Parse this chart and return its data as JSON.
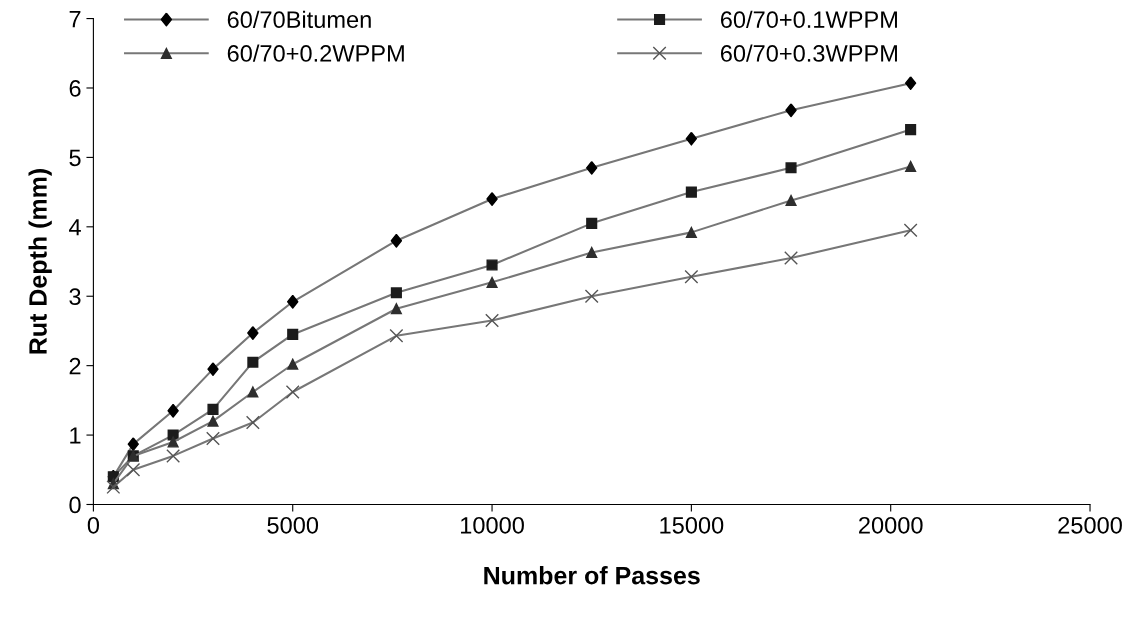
{
  "chart_data": {
    "type": "line",
    "xlabel": "Number of Passes",
    "ylabel": "Rut Depth (mm)",
    "x": [
      500,
      1000,
      2000,
      3000,
      4000,
      5000,
      7600,
      10000,
      12500,
      15000,
      17500,
      20500
    ],
    "xlim": [
      0,
      25000
    ],
    "xticks": [
      0,
      5000,
      10000,
      15000,
      20000,
      25000
    ],
    "ylim": [
      0,
      7
    ],
    "yticks": [
      0,
      1,
      2,
      3,
      4,
      5,
      6,
      7
    ],
    "grid": false,
    "legend": "top",
    "series": [
      {
        "name": "60/70Bitumen",
        "color": "#000000",
        "marker": "diamond",
        "values": [
          0.4,
          0.87,
          1.35,
          1.95,
          2.47,
          2.92,
          3.8,
          4.4,
          4.85,
          5.27,
          5.68,
          6.07
        ]
      },
      {
        "name": "60/70+0.1WPPM",
        "color": "#1c1c1c",
        "marker": "square",
        "values": [
          0.4,
          0.7,
          1.0,
          1.37,
          2.05,
          2.45,
          3.05,
          3.45,
          4.05,
          4.5,
          4.85,
          5.4
        ]
      },
      {
        "name": "60/70+0.2WPPM",
        "color": "#2e2e2e",
        "marker": "triangle",
        "values": [
          0.3,
          0.7,
          0.9,
          1.2,
          1.62,
          2.02,
          2.82,
          3.2,
          3.63,
          3.92,
          4.38,
          4.87
        ]
      },
      {
        "name": "60/70+0.3WPPM",
        "color": "#555555",
        "marker": "cross",
        "values": [
          0.25,
          0.5,
          0.7,
          0.95,
          1.18,
          1.62,
          2.43,
          2.65,
          3.0,
          3.28,
          3.55,
          3.95
        ]
      }
    ]
  }
}
